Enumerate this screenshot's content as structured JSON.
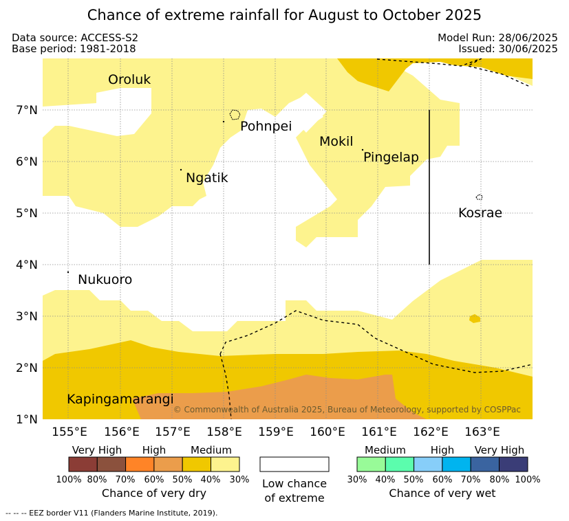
{
  "title": "Chance of extreme rainfall for August to October 2025",
  "header": {
    "data_source": "Data source: ACCESS-S2",
    "base_period": "Base period: 1981-2018",
    "model_run": "Model Run: 28/06/2025",
    "issued": "Issued: 30/06/2025"
  },
  "map": {
    "places": {
      "oroluk": "Oroluk",
      "pohnpei": "Pohnpei",
      "mokil": "Mokil",
      "pingelap": "Pingelap",
      "ngatik": "Ngatik",
      "kosrae": "Kosrae",
      "nukuoro": "Nukuoro",
      "kapingamarangi": "Kapingamarangi"
    },
    "lat_ticks": [
      "7°N",
      "6°N",
      "5°N",
      "4°N",
      "3°N",
      "2°N",
      "1°N"
    ],
    "lon_ticks": [
      "155°E",
      "156°E",
      "157°E",
      "158°E",
      "159°E",
      "160°E",
      "161°E",
      "162°E",
      "163°E"
    ],
    "copyright": "© Commonwealth of Australia 2025, Bureau of Meteorology, supported by COSPPac",
    "colors": {
      "dry_medium_30_40": "#fdf38e",
      "dry_medium_40_50": "#f0c800",
      "dry_high_50_60": "#eb9d4b",
      "dry_high_60_70": "#ff8427",
      "dry_very_high_70_80": "#8b513d",
      "dry_very_high_80_100": "#8b3d36",
      "wet_medium_30_40": "#98fb98",
      "wet_medium_40_50": "#5bfdad",
      "wet_high_50_60": "#87cef9",
      "wet_high_60_70": "#00b4ef",
      "wet_very_high_70_80": "#3a64a0",
      "wet_very_high_80_100": "#3a3d77",
      "low_chance": "#ffffff"
    }
  },
  "legend": {
    "dry": {
      "levels": [
        "Very High",
        "High",
        "Medium"
      ],
      "percents": [
        "100%",
        "80%",
        "70%",
        "60%",
        "50%",
        "40%",
        "30%"
      ],
      "title": "Chance of very dry"
    },
    "low": {
      "line1": "Low chance",
      "line2": "of extreme"
    },
    "wet": {
      "levels": [
        "Medium",
        "High",
        "Very High"
      ],
      "percents": [
        "30%",
        "40%",
        "50%",
        "60%",
        "70%",
        "80%",
        "100%"
      ],
      "title": "Chance of very wet"
    }
  },
  "footnote": "--  --  -- EEZ border V11 (Flanders Marine Institute, 2019)."
}
